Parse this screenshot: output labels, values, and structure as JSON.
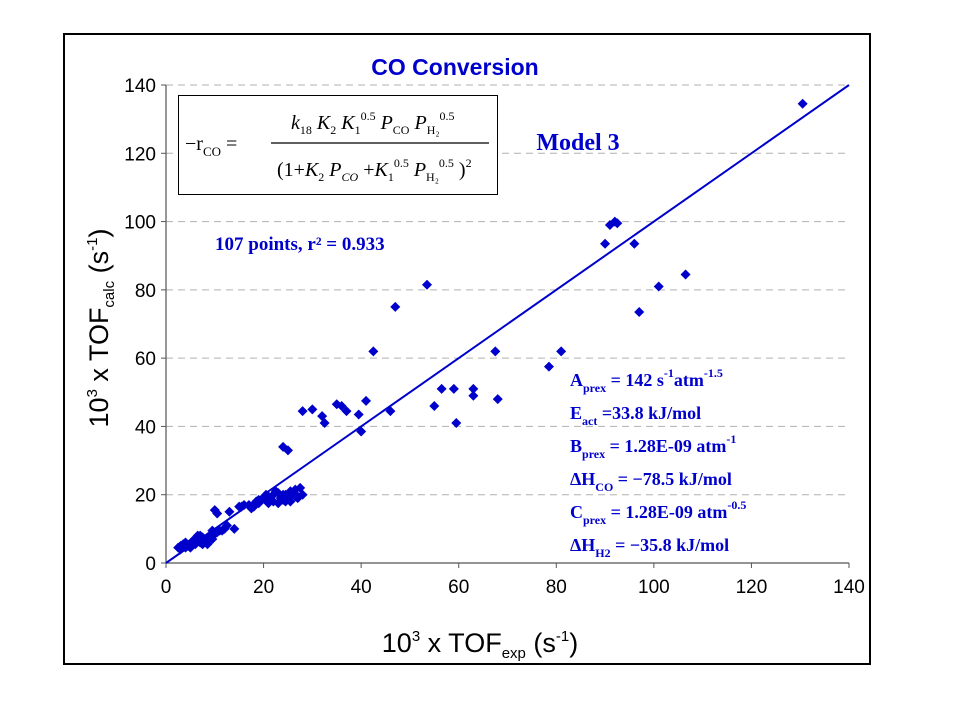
{
  "chart_data": {
    "type": "scatter",
    "title": "CO Conversion",
    "model_label": "Model 3",
    "fit_label": "107 points, r² = 0.933",
    "xlabel": {
      "prefix": "10",
      "sup": "3",
      "mid": " x TOF",
      "sub": "exp",
      "unit": " (s",
      "unit_sup": "-1",
      "close": ")"
    },
    "ylabel": {
      "prefix": "10",
      "sup": "3",
      "mid": " x TOF",
      "sub": "calc",
      "unit": " (s",
      "unit_sup": "-1",
      "close": ")"
    },
    "xlim": [
      0,
      140
    ],
    "ylim": [
      0,
      140
    ],
    "xticks": [
      0,
      20,
      40,
      60,
      80,
      100,
      120,
      140
    ],
    "yticks": [
      0,
      20,
      40,
      60,
      80,
      100,
      120,
      140
    ],
    "grid": "horizontal dashed",
    "marker_color": "#0000CC",
    "line_color": "#0000CC",
    "parity_line": {
      "from": [
        0,
        0
      ],
      "to": [
        140,
        140
      ]
    },
    "equation": {
      "lhs": "−r",
      "lhs_sub": "CO",
      "numerator": "k18 K2 K1^0.5 P_CO P_H2^0.5",
      "denominator": "(1+K2 P_CO + K1^0.5 P_H2^0.5)^2"
    },
    "parameters": [
      {
        "name": "A",
        "sub": "prex",
        "text": " = 142 s",
        "sup1": "-1",
        "text2": "atm",
        "sup2": "-1.5"
      },
      {
        "name": "E",
        "sub": "act",
        "text": "   =33.8 kJ/mol",
        "sup1": "",
        "text2": "",
        "sup2": ""
      },
      {
        "name": "B",
        "sub": "prex",
        "text": " = 1.28E-09 atm",
        "sup1": "-1",
        "text2": "",
        "sup2": ""
      },
      {
        "name": "ΔH",
        "sub": "CO",
        "text": "  = −78.5 kJ/mol",
        "sup1": "",
        "text2": "",
        "sup2": ""
      },
      {
        "name": "C",
        "sub": "prex",
        "text": "  = 1.28E-09 atm",
        "sup1": "-0.5",
        "text2": "",
        "sup2": ""
      },
      {
        "name": "ΔH",
        "sub": "H2",
        "text": "   = −35.8 kJ/mol",
        "sup1": "",
        "text2": "",
        "sup2": ""
      }
    ],
    "points": [
      [
        2.5,
        4.5
      ],
      [
        3,
        5
      ],
      [
        3.5,
        5.5
      ],
      [
        4,
        6
      ],
      [
        4.5,
        5
      ],
      [
        5,
        5.5
      ],
      [
        5.5,
        6.5
      ],
      [
        6,
        7
      ],
      [
        6.5,
        8
      ],
      [
        7,
        6
      ],
      [
        7.5,
        5.5
      ],
      [
        8,
        7
      ],
      [
        8.5,
        7.5
      ],
      [
        9,
        8
      ],
      [
        9.5,
        7
      ],
      [
        10,
        8.5
      ],
      [
        10.5,
        9
      ],
      [
        10,
        15.5
      ],
      [
        10.5,
        14.5
      ],
      [
        11,
        9.5
      ],
      [
        13,
        15
      ],
      [
        14,
        10
      ],
      [
        15,
        16.5
      ],
      [
        16,
        17
      ],
      [
        17,
        17
      ],
      [
        18,
        16.5
      ],
      [
        18.5,
        18
      ],
      [
        19,
        17.5
      ],
      [
        19.5,
        18.5
      ],
      [
        20,
        19
      ],
      [
        20.5,
        20
      ],
      [
        21,
        19.5
      ],
      [
        21.5,
        18.5
      ],
      [
        22,
        20
      ],
      [
        22.5,
        21
      ],
      [
        23,
        20.5
      ],
      [
        23.5,
        19
      ],
      [
        24,
        18.5
      ],
      [
        24.5,
        20
      ],
      [
        25,
        19
      ],
      [
        25.5,
        21
      ],
      [
        26,
        20.5
      ],
      [
        26.5,
        21.5
      ],
      [
        27,
        19
      ],
      [
        27.5,
        22
      ],
      [
        28,
        20
      ],
      [
        24,
        34
      ],
      [
        25,
        33
      ],
      [
        28,
        44.5
      ],
      [
        30,
        45
      ],
      [
        32,
        43
      ],
      [
        32.5,
        41
      ],
      [
        35,
        46.5
      ],
      [
        36,
        46
      ],
      [
        37,
        44.5
      ],
      [
        39.5,
        43.5
      ],
      [
        40,
        38.5
      ],
      [
        41,
        47.5
      ],
      [
        42.5,
        62
      ],
      [
        47,
        75
      ],
      [
        46,
        44.5
      ],
      [
        53.5,
        81.5
      ],
      [
        55,
        46
      ],
      [
        56.5,
        51
      ],
      [
        59,
        51
      ],
      [
        59.5,
        41
      ],
      [
        63,
        51
      ],
      [
        63,
        49
      ],
      [
        67.5,
        62
      ],
      [
        68,
        48
      ],
      [
        78.5,
        57.5
      ],
      [
        81,
        62
      ],
      [
        90,
        93.5
      ],
      [
        91,
        99
      ],
      [
        92,
        100
      ],
      [
        92.5,
        99.5
      ],
      [
        96,
        93.5
      ],
      [
        97,
        73.5
      ],
      [
        101,
        81
      ],
      [
        106.5,
        84.5
      ],
      [
        130.5,
        134.5
      ],
      [
        5,
        4.5
      ],
      [
        6,
        5.5
      ],
      [
        7.5,
        7.5
      ],
      [
        8,
        6.5
      ],
      [
        9,
        7.5
      ],
      [
        11.5,
        9.5
      ],
      [
        12,
        10
      ],
      [
        17.5,
        16
      ],
      [
        19,
        18.5
      ],
      [
        21,
        17.5
      ],
      [
        22,
        18
      ],
      [
        23,
        17.5
      ],
      [
        24,
        20
      ],
      [
        25.5,
        18
      ],
      [
        26.5,
        19.5
      ],
      [
        6.5,
        7
      ],
      [
        4,
        4.5
      ],
      [
        3,
        4
      ],
      [
        8.5,
        5.5
      ],
      [
        9.5,
        9.5
      ],
      [
        12.5,
        11
      ],
      [
        15.5,
        16.5
      ],
      [
        20.5,
        18.5
      ],
      [
        24.5,
        18
      ],
      [
        27,
        19.5
      ],
      [
        7,
        8
      ]
    ]
  }
}
